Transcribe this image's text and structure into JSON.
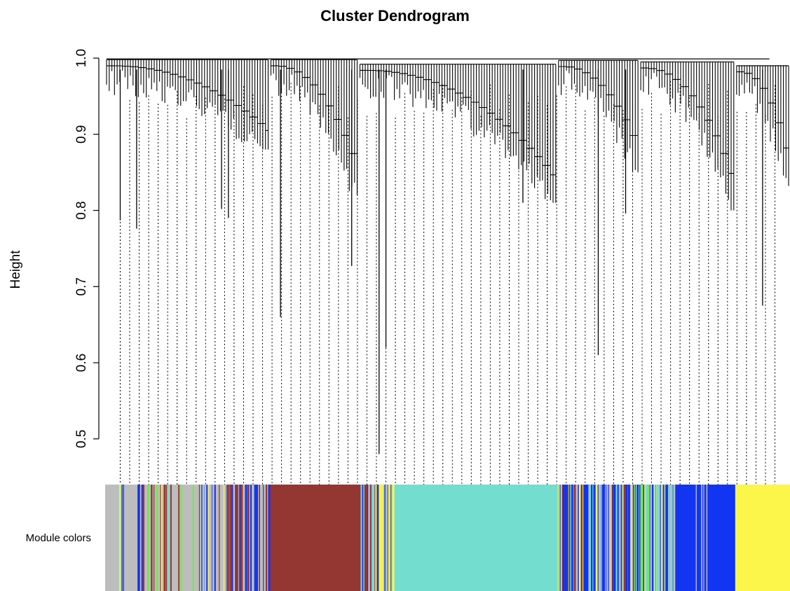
{
  "chart_data": {
    "type": "dendrogram",
    "title": "Cluster Dendrogram",
    "ylabel": "Height",
    "xlabel": "",
    "ylim": [
      0.44,
      1.0
    ],
    "yticks": [
      0.5,
      0.6,
      0.7,
      0.8,
      0.9,
      1.0
    ],
    "ytick_labels": [
      "0.5",
      "0.6",
      "0.7",
      "0.8",
      "0.9",
      "1.0"
    ],
    "grid": false,
    "module_colors_label": "Module colors",
    "module_palette": {
      "grey": "#bdbdbd",
      "brown": "#943632",
      "turquoise": "#73ddd0",
      "blue": "#1235f2",
      "yellow": "#fcf64b",
      "green": "#75e84f"
    },
    "branch_groups": [
      {
        "module": "grey",
        "share": 0.24,
        "low": 0.9,
        "join": 0.998
      },
      {
        "module": "brown",
        "share": 0.13,
        "low": 0.84,
        "join": 0.998
      },
      {
        "module": "turquoise",
        "share": 0.29,
        "low": 0.83,
        "join": 0.992
      },
      {
        "module": "green",
        "share": 0.12,
        "low": 0.87,
        "join": 0.997
      },
      {
        "module": "blue",
        "share": 0.14,
        "low": 0.82,
        "join": 0.995
      },
      {
        "module": "yellow",
        "share": 0.08,
        "low": 0.85,
        "join": 0.99
      }
    ],
    "notable_drops": [
      {
        "position": 0.022,
        "height": 0.787
      },
      {
        "position": 0.046,
        "height": 0.776
      },
      {
        "position": 0.17,
        "height": 0.802
      },
      {
        "position": 0.18,
        "height": 0.79
      },
      {
        "position": 0.256,
        "height": 0.66
      },
      {
        "position": 0.36,
        "height": 0.727
      },
      {
        "position": 0.4,
        "height": 0.48
      },
      {
        "position": 0.41,
        "height": 0.62
      },
      {
        "position": 0.61,
        "height": 0.81
      },
      {
        "position": 0.72,
        "height": 0.61
      },
      {
        "position": 0.76,
        "height": 0.796
      },
      {
        "position": 0.96,
        "height": 0.675
      }
    ],
    "module_colors": [
      {
        "color": "grey",
        "start": 0.0,
        "end": 0.24
      },
      {
        "color": "brown",
        "start": 0.24,
        "end": 0.373
      },
      {
        "color": "turquoise",
        "start": 0.373,
        "end": 0.662
      },
      {
        "color": "blue",
        "start": 0.662,
        "end": 0.772
      },
      {
        "color": "green",
        "start": 0.772,
        "end": 0.795
      },
      {
        "color": "blue",
        "start": 0.795,
        "end": 0.92
      },
      {
        "color": "yellow",
        "start": 0.92,
        "end": 1.0
      }
    ]
  }
}
